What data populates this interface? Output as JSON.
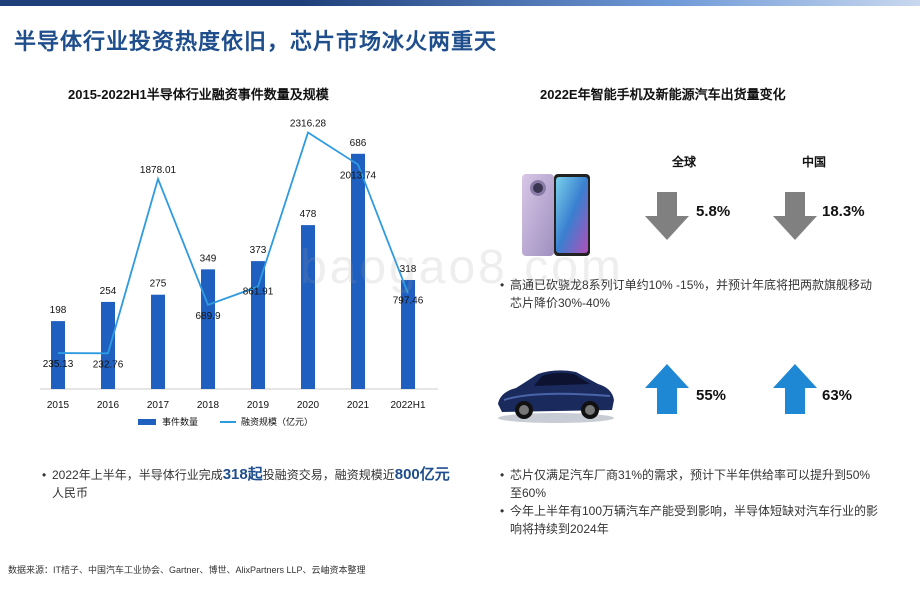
{
  "page_title": "半导体行业投资热度依旧，芯片市场冰火两重天",
  "chart_data": {
    "type": "bar+line",
    "title": "2015-2022H1半导体行业融资事件数量及规模",
    "categories": [
      "2015",
      "2016",
      "2017",
      "2018",
      "2019",
      "2020",
      "2021",
      "2022H1"
    ],
    "series": [
      {
        "name": "事件数量",
        "type": "bar",
        "color": "#1f5fbf",
        "values": [
          198,
          254,
          275,
          349,
          373,
          478,
          686,
          318
        ]
      },
      {
        "name": "融资规模（亿元）",
        "type": "line",
        "color": "#2e9be0",
        "values": [
          235.13,
          232.76,
          1878.01,
          689.9,
          861.91,
          2316.28,
          2013.74,
          797.46
        ],
        "labels": [
          "235.13",
          "232.76",
          "1878.01",
          "689.9",
          "861.91",
          "2316.28",
          "2013.74",
          "797.46"
        ]
      }
    ],
    "legend": "bottom"
  },
  "left_note": {
    "pre": "2022年上半年，半导体行业完成",
    "hl1": "318起",
    "mid": "投融资交易，融资规模近",
    "hl2": "800亿元",
    "post": "人民币"
  },
  "right": {
    "title": "2022E年智能手机及新能源汽车出货量变化",
    "col_global": "全球",
    "col_china": "中国",
    "phone": {
      "global_pct": "5.8%",
      "china_pct": "18.3%",
      "direction": "down",
      "arrow_color": "#808080",
      "note": "高通已砍骁龙8系列订单约10% -15%，并预计年底将把两款旗舰移动芯片降价30%-40%"
    },
    "car": {
      "global_pct": "55%",
      "china_pct": "63%",
      "direction": "up",
      "arrow_color": "#1e88d4",
      "notes": [
        "芯片仅满足汽车厂商31%的需求，预计下半年供给率可以提升到50%至60%",
        "今年上半年有100万辆汽车产能受到影响，半导体短缺对汽车行业的影响将持续到2024年"
      ]
    }
  },
  "bullet_char": "•",
  "source": "数据来源：IT桔子、中国汽车工业协会、Gartner、博世、AlixPartners LLP、云岫资本整理",
  "watermark": "baogao8.com"
}
